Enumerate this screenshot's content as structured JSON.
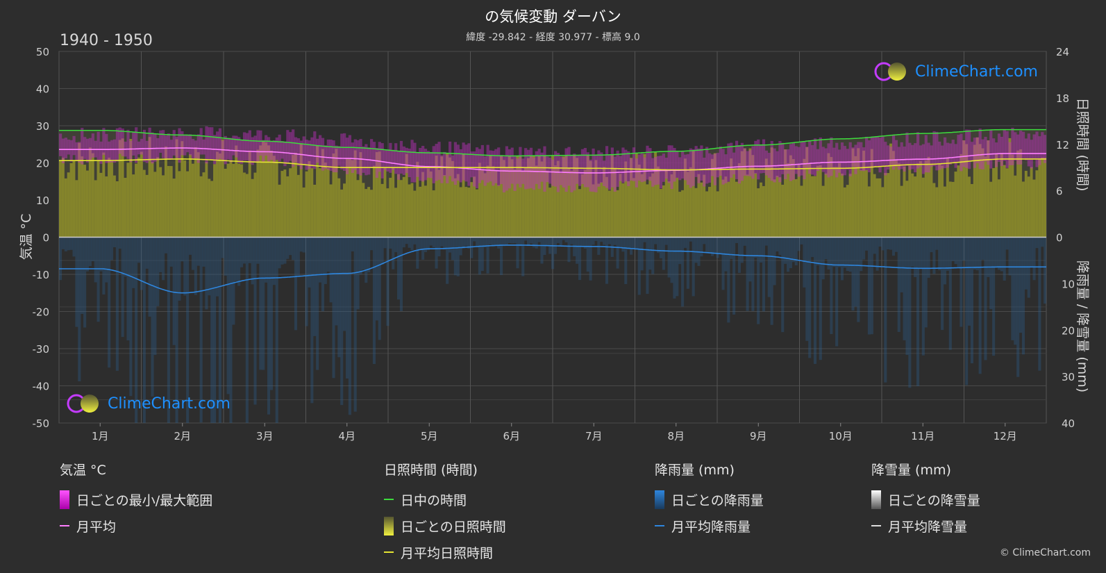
{
  "header": {
    "title": "の気候変動 ダーバン",
    "subtitle": "緯度 -29.842 - 経度 30.977 - 標高 9.0",
    "period": "1940 - 1950",
    "copyright": "© ClimeChart.com",
    "logo_text": "ClimeChart.com"
  },
  "axes": {
    "left_label": "気温 °C",
    "right_top_label": "日照時間 (時間)",
    "right_bottom_label": "降雨量 / 降雪量 (mm)",
    "left_ticks": [
      "50",
      "40",
      "30",
      "20",
      "10",
      "0",
      "-10",
      "-20",
      "-30",
      "-40",
      "-50"
    ],
    "right_top_ticks": [
      "24",
      "18",
      "12",
      "6",
      "0"
    ],
    "right_bottom_ticks": [
      "10",
      "20",
      "30",
      "40"
    ],
    "months": [
      "1月",
      "2月",
      "3月",
      "4月",
      "5月",
      "6月",
      "7月",
      "8月",
      "9月",
      "10月",
      "11月",
      "12月"
    ]
  },
  "legend": {
    "temp": {
      "title": "気温 °C",
      "range": "日ごとの最小/最大範囲",
      "mean": "月平均"
    },
    "sun": {
      "title": "日照時間 (時間)",
      "daylight": "日中の時間",
      "daily": "日ごとの日照時間",
      "mean": "月平均日照時間"
    },
    "rain": {
      "title": "降雨量 (mm)",
      "daily": "日ごとの降雨量",
      "mean": "月平均降雨量"
    },
    "snow": {
      "title": "降雪量 (mm)",
      "daily": "日ごとの降雪量",
      "mean": "月平均降雪量"
    }
  },
  "colors": {
    "daylight": "#3ddc3d",
    "sunshine_mean": "#e6e632",
    "sunshine_fill": "#9b9b2e",
    "temp_mean": "#ff7eff",
    "temp_range": "#cc22cc",
    "rain": "#2e86de",
    "snow": "#dddddd"
  },
  "chart_data": {
    "type": "area",
    "x_unit": "month",
    "categories": [
      "1月",
      "2月",
      "3月",
      "4月",
      "5月",
      "6月",
      "7月",
      "8月",
      "9月",
      "10月",
      "11月",
      "12月"
    ],
    "ylim_temperature": [
      -50,
      50
    ],
    "ylim_sunshine_hours": [
      0,
      24
    ],
    "ylim_precipitation_mm": [
      40,
      0
    ],
    "grid": true,
    "series": [
      {
        "name": "日中の時間",
        "unit": "hours",
        "values": [
          13.8,
          13.2,
          12.4,
          11.6,
          10.9,
          10.5,
          10.6,
          11.1,
          11.9,
          12.7,
          13.4,
          13.9
        ]
      },
      {
        "name": "月平均日照時間",
        "unit": "hours",
        "values": [
          9.9,
          10.1,
          9.7,
          9.0,
          9.0,
          9.0,
          8.9,
          8.7,
          8.8,
          8.9,
          9.4,
          10.1
        ]
      },
      {
        "name": "月平均",
        "unit": "°C",
        "values": [
          23.6,
          24.0,
          23.0,
          21.2,
          19.0,
          17.8,
          17.3,
          18.0,
          19.1,
          20.2,
          21.0,
          22.5
        ]
      },
      {
        "name": "日ごとの最小/最大範囲 (min)",
        "unit": "°C",
        "values": [
          21.0,
          21.5,
          20.5,
          18.0,
          16.0,
          13.5,
          13.5,
          14.5,
          16.0,
          17.5,
          18.5,
          20.0
        ]
      },
      {
        "name": "日ごとの最小/最大範囲 (max)",
        "unit": "°C",
        "values": [
          27.5,
          28.0,
          27.5,
          26.0,
          24.0,
          23.0,
          22.5,
          23.0,
          24.5,
          25.5,
          26.5,
          27.5
        ]
      },
      {
        "name": "月平均降雨量",
        "unit": "mm",
        "values": [
          6.8,
          12.0,
          8.8,
          7.8,
          2.5,
          1.7,
          2.0,
          3.0,
          4.0,
          6.0,
          6.7,
          6.4
        ]
      }
    ]
  }
}
